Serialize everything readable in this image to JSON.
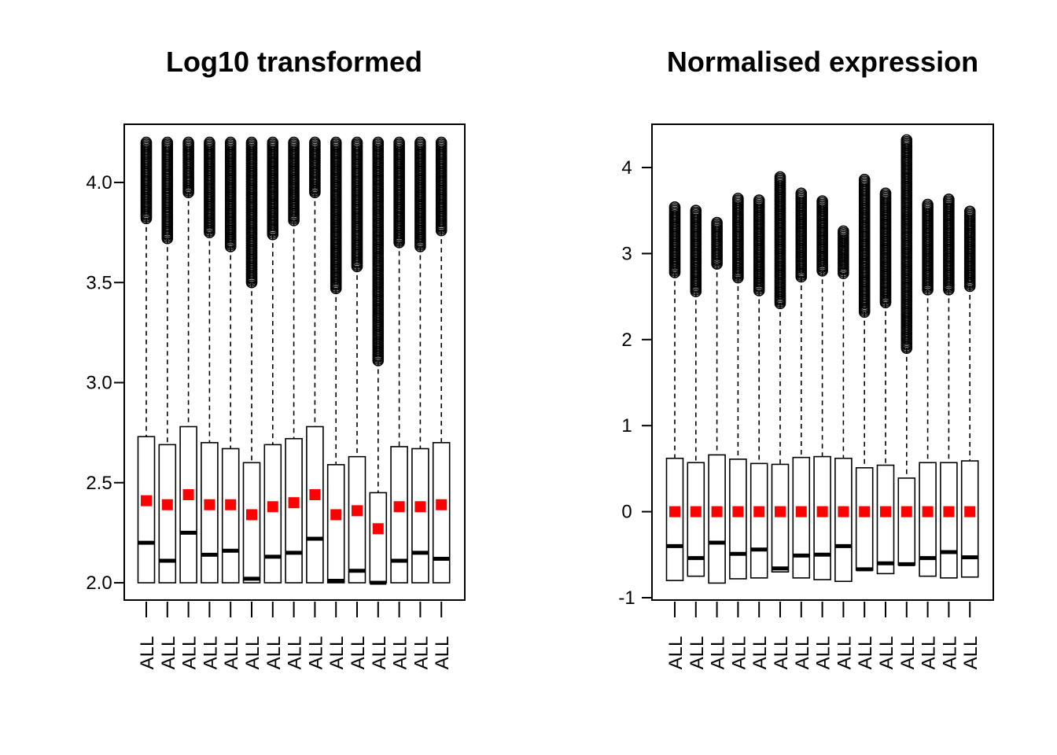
{
  "chart_data": [
    {
      "type": "boxplot",
      "title": "Log10 transformed",
      "xlabel": "",
      "ylabel": "",
      "categories": [
        "ALL",
        "ALL",
        "ALL",
        "ALL",
        "ALL",
        "ALL",
        "ALL",
        "ALL",
        "ALL",
        "ALL",
        "ALL",
        "ALL",
        "ALL",
        "ALL",
        "ALL"
      ],
      "ylim": [
        1.94,
        4.3
      ],
      "yticks": [
        {
          "value": 2.0,
          "label": "2.0"
        },
        {
          "value": 2.5,
          "label": "2.5"
        },
        {
          "value": 3.0,
          "label": "3.0"
        },
        {
          "value": 3.5,
          "label": "3.5"
        },
        {
          "value": 4.0,
          "label": "4.0"
        }
      ],
      "boxes": [
        {
          "min": 2.0,
          "q1": 2.0,
          "median": 2.2,
          "q3": 2.73,
          "whisker_high": 3.82,
          "max": 4.2,
          "mean": 2.41
        },
        {
          "min": 2.0,
          "q1": 2.0,
          "median": 2.11,
          "q3": 2.69,
          "whisker_high": 3.72,
          "max": 4.2,
          "mean": 2.39
        },
        {
          "min": 2.0,
          "q1": 2.0,
          "median": 2.25,
          "q3": 2.78,
          "whisker_high": 3.95,
          "max": 4.2,
          "mean": 2.44
        },
        {
          "min": 2.0,
          "q1": 2.0,
          "median": 2.14,
          "q3": 2.7,
          "whisker_high": 3.75,
          "max": 4.2,
          "mean": 2.39
        },
        {
          "min": 2.0,
          "q1": 2.0,
          "median": 2.16,
          "q3": 2.67,
          "whisker_high": 3.68,
          "max": 4.2,
          "mean": 2.39
        },
        {
          "min": 2.0,
          "q1": 2.0,
          "median": 2.02,
          "q3": 2.6,
          "whisker_high": 3.5,
          "max": 4.2,
          "mean": 2.34
        },
        {
          "min": 2.0,
          "q1": 2.0,
          "median": 2.13,
          "q3": 2.69,
          "whisker_high": 3.74,
          "max": 4.2,
          "mean": 2.38
        },
        {
          "min": 2.0,
          "q1": 2.0,
          "median": 2.15,
          "q3": 2.72,
          "whisker_high": 3.81,
          "max": 4.2,
          "mean": 2.4
        },
        {
          "min": 2.0,
          "q1": 2.0,
          "median": 2.22,
          "q3": 2.78,
          "whisker_high": 3.95,
          "max": 4.2,
          "mean": 2.44
        },
        {
          "min": 2.0,
          "q1": 2.0,
          "median": 2.01,
          "q3": 2.59,
          "whisker_high": 3.47,
          "max": 4.2,
          "mean": 2.34
        },
        {
          "min": 2.0,
          "q1": 2.0,
          "median": 2.06,
          "q3": 2.63,
          "whisker_high": 3.58,
          "max": 4.2,
          "mean": 2.36
        },
        {
          "min": 2.0,
          "q1": 2.0,
          "median": 2.0,
          "q3": 2.45,
          "whisker_high": 3.11,
          "max": 4.2,
          "mean": 2.27
        },
        {
          "min": 2.0,
          "q1": 2.0,
          "median": 2.11,
          "q3": 2.68,
          "whisker_high": 3.7,
          "max": 4.2,
          "mean": 2.38
        },
        {
          "min": 2.0,
          "q1": 2.0,
          "median": 2.15,
          "q3": 2.67,
          "whisker_high": 3.68,
          "max": 4.2,
          "mean": 2.38
        },
        {
          "min": 2.0,
          "q1": 2.0,
          "median": 2.12,
          "q3": 2.7,
          "whisker_high": 3.76,
          "max": 4.2,
          "mean": 2.39
        }
      ],
      "box_color": "#ffffff",
      "mean_marker_color": "#ff0000",
      "grid": false,
      "legend": "none"
    },
    {
      "type": "boxplot",
      "title": "Normalised expression",
      "xlabel": "",
      "ylabel": "",
      "categories": [
        "ALL",
        "ALL",
        "ALL",
        "ALL",
        "ALL",
        "ALL",
        "ALL",
        "ALL",
        "ALL",
        "ALL",
        "ALL",
        "ALL",
        "ALL",
        "ALL",
        "ALL"
      ],
      "ylim": [
        -1.0,
        4.5
      ],
      "yticks": [
        {
          "value": -1,
          "label": "-1"
        },
        {
          "value": 0,
          "label": "0"
        },
        {
          "value": 1,
          "label": "1"
        },
        {
          "value": 2,
          "label": "2"
        },
        {
          "value": 3,
          "label": "3"
        },
        {
          "value": 4,
          "label": "4"
        }
      ],
      "boxes": [
        {
          "min": -0.8,
          "q1": -0.8,
          "median": -0.4,
          "q3": 0.62,
          "whisker_high": 2.78,
          "max": 3.54,
          "mean": 0.0
        },
        {
          "min": -0.75,
          "q1": -0.75,
          "median": -0.54,
          "q3": 0.57,
          "whisker_high": 2.56,
          "max": 3.5,
          "mean": 0.0
        },
        {
          "min": -0.83,
          "q1": -0.83,
          "median": -0.36,
          "q3": 0.66,
          "whisker_high": 2.88,
          "max": 3.36,
          "mean": 0.0
        },
        {
          "min": -0.78,
          "q1": -0.78,
          "median": -0.49,
          "q3": 0.61,
          "whisker_high": 2.72,
          "max": 3.64,
          "mean": 0.0
        },
        {
          "min": -0.77,
          "q1": -0.77,
          "median": -0.44,
          "q3": 0.56,
          "whisker_high": 2.57,
          "max": 3.62,
          "mean": 0.0
        },
        {
          "min": -0.7,
          "q1": -0.7,
          "median": -0.66,
          "q3": 0.55,
          "whisker_high": 2.42,
          "max": 3.89,
          "mean": 0.0
        },
        {
          "min": -0.77,
          "q1": -0.77,
          "median": -0.51,
          "q3": 0.63,
          "whisker_high": 2.73,
          "max": 3.7,
          "mean": 0.0
        },
        {
          "min": -0.79,
          "q1": -0.79,
          "median": -0.5,
          "q3": 0.64,
          "whisker_high": 2.8,
          "max": 3.61,
          "mean": 0.0
        },
        {
          "min": -0.81,
          "q1": -0.81,
          "median": -0.4,
          "q3": 0.62,
          "whisker_high": 2.77,
          "max": 3.26,
          "mean": 0.0
        },
        {
          "min": -0.68,
          "q1": -0.68,
          "median": -0.67,
          "q3": 0.51,
          "whisker_high": 2.32,
          "max": 3.86,
          "mean": 0.0
        },
        {
          "min": -0.72,
          "q1": -0.72,
          "median": -0.6,
          "q3": 0.54,
          "whisker_high": 2.43,
          "max": 3.7,
          "mean": 0.0
        },
        {
          "min": -0.62,
          "q1": -0.62,
          "median": -0.61,
          "q3": 0.39,
          "whisker_high": 1.9,
          "max": 4.32,
          "mean": 0.0
        },
        {
          "min": -0.75,
          "q1": -0.75,
          "median": -0.54,
          "q3": 0.57,
          "whisker_high": 2.58,
          "max": 3.57,
          "mean": 0.0
        },
        {
          "min": -0.77,
          "q1": -0.77,
          "median": -0.47,
          "q3": 0.57,
          "whisker_high": 2.58,
          "max": 3.63,
          "mean": 0.0
        },
        {
          "min": -0.76,
          "q1": -0.76,
          "median": -0.53,
          "q3": 0.59,
          "whisker_high": 2.62,
          "max": 3.49,
          "mean": 0.0
        }
      ],
      "box_color": "#ffffff",
      "mean_marker_color": "#ff0000",
      "grid": false,
      "legend": "none"
    }
  ]
}
